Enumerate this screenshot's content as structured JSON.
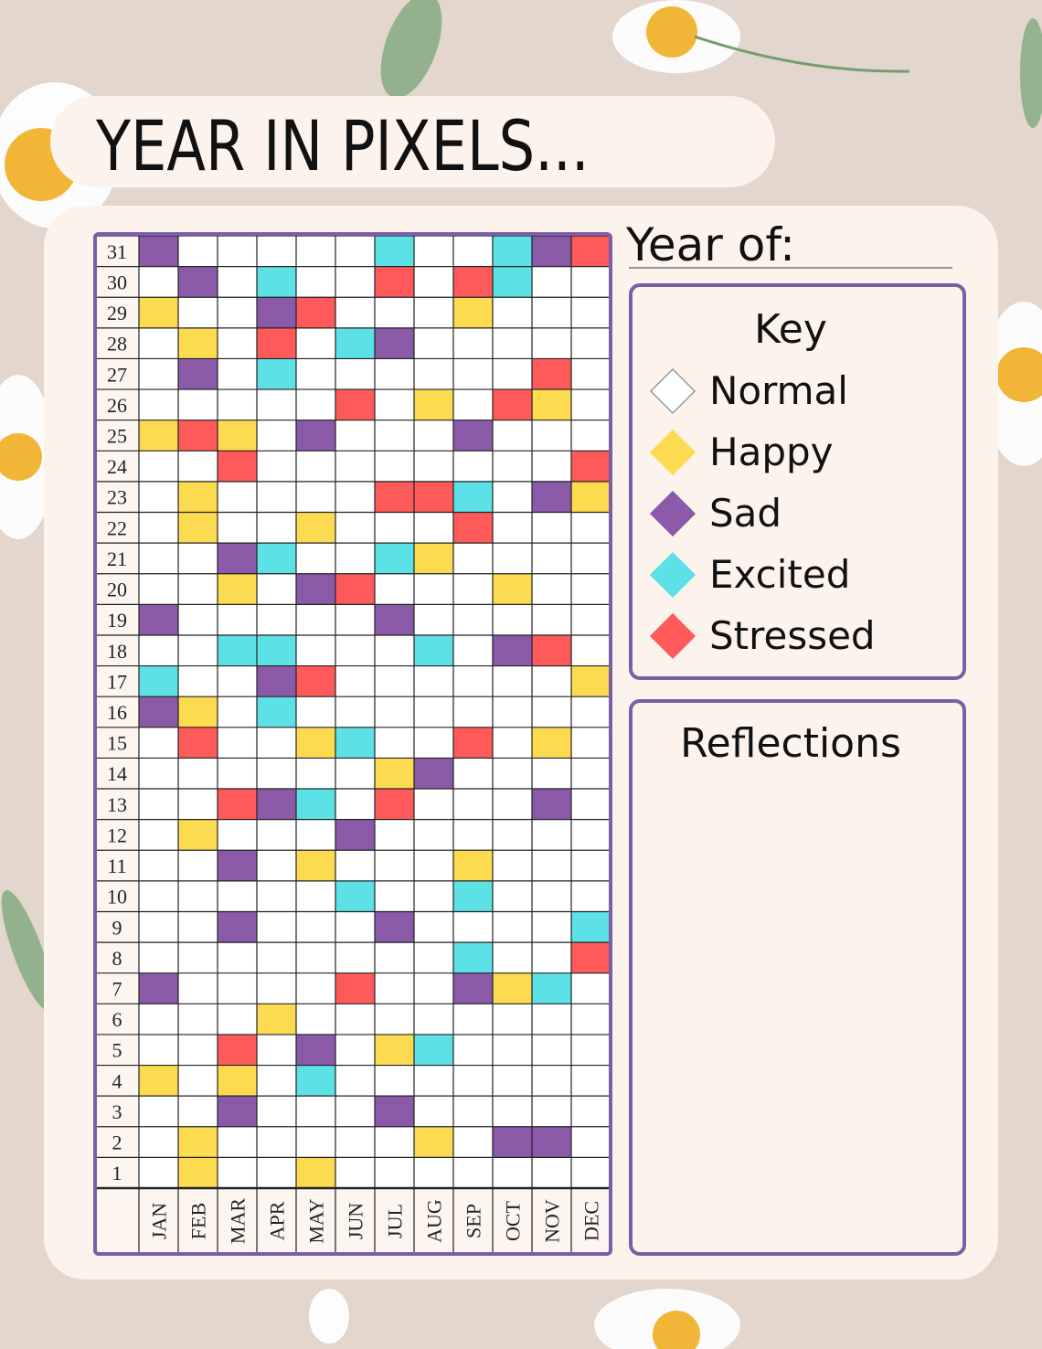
{
  "header": {
    "title": "YEAR IN PIXELS...",
    "year_label": "Year of:"
  },
  "key": {
    "title": "Key",
    "items": [
      {
        "label": "Normal",
        "color": "#ffffff"
      },
      {
        "label": "Happy",
        "color": "#fddb50"
      },
      {
        "label": "Sad",
        "color": "#8a5aa8"
      },
      {
        "label": "Excited",
        "color": "#5ce1e6"
      },
      {
        "label": "Stressed",
        "color": "#ff5a5a"
      }
    ]
  },
  "reflections": {
    "title": "Reflections"
  },
  "tracker": {
    "months": [
      "JAN",
      "FEB",
      "MAR",
      "APR",
      "MAY",
      "JUN",
      "JUL",
      "AUG",
      "SEP",
      "OCT",
      "NOV",
      "DEC"
    ],
    "rows": [
      {
        "day": 31,
        "cells": [
          "Sad",
          null,
          null,
          null,
          null,
          null,
          "Excited",
          null,
          null,
          "Excited",
          "Sad",
          "Stressed"
        ]
      },
      {
        "day": 30,
        "cells": [
          null,
          "Sad",
          null,
          "Excited",
          null,
          null,
          "Stressed",
          null,
          "Stressed",
          "Excited",
          null,
          null
        ]
      },
      {
        "day": 29,
        "cells": [
          "Happy",
          null,
          null,
          "Sad",
          "Stressed",
          null,
          null,
          null,
          "Happy",
          null,
          null,
          null
        ]
      },
      {
        "day": 28,
        "cells": [
          null,
          "Happy",
          null,
          "Stressed",
          null,
          "Excited",
          "Sad",
          null,
          null,
          null,
          null,
          null
        ]
      },
      {
        "day": 27,
        "cells": [
          null,
          "Sad",
          null,
          "Excited",
          null,
          null,
          null,
          null,
          null,
          null,
          "Stressed",
          null
        ]
      },
      {
        "day": 26,
        "cells": [
          null,
          null,
          null,
          null,
          null,
          "Stressed",
          null,
          "Happy",
          null,
          "Stressed",
          "Happy",
          null
        ]
      },
      {
        "day": 25,
        "cells": [
          "Happy",
          "Stressed",
          "Happy",
          null,
          "Sad",
          null,
          null,
          null,
          "Sad",
          null,
          null,
          null
        ]
      },
      {
        "day": 24,
        "cells": [
          null,
          null,
          "Stressed",
          null,
          null,
          null,
          null,
          null,
          null,
          null,
          null,
          "Stressed"
        ]
      },
      {
        "day": 23,
        "cells": [
          null,
          "Happy",
          null,
          null,
          null,
          null,
          "Stressed",
          "Stressed",
          "Excited",
          null,
          "Sad",
          "Happy"
        ]
      },
      {
        "day": 22,
        "cells": [
          null,
          "Happy",
          null,
          null,
          "Happy",
          null,
          null,
          null,
          "Stressed",
          null,
          null,
          null
        ]
      },
      {
        "day": 21,
        "cells": [
          null,
          null,
          "Sad",
          "Excited",
          null,
          null,
          "Excited",
          "Happy",
          null,
          null,
          null,
          null
        ]
      },
      {
        "day": 20,
        "cells": [
          null,
          null,
          "Happy",
          null,
          "Sad",
          "Stressed",
          null,
          null,
          null,
          "Happy",
          null,
          null
        ]
      },
      {
        "day": 19,
        "cells": [
          "Sad",
          null,
          null,
          null,
          null,
          null,
          "Sad",
          null,
          null,
          null,
          null,
          null
        ]
      },
      {
        "day": 18,
        "cells": [
          null,
          null,
          "Excited",
          "Excited",
          null,
          null,
          null,
          "Excited",
          null,
          "Sad",
          "Stressed",
          null
        ]
      },
      {
        "day": 17,
        "cells": [
          "Excited",
          null,
          null,
          "Sad",
          "Stressed",
          null,
          null,
          null,
          null,
          null,
          null,
          "Happy"
        ]
      },
      {
        "day": 16,
        "cells": [
          "Sad",
          "Happy",
          null,
          "Excited",
          null,
          null,
          null,
          null,
          null,
          null,
          null,
          null
        ]
      },
      {
        "day": 15,
        "cells": [
          null,
          "Stressed",
          null,
          null,
          "Happy",
          "Excited",
          null,
          null,
          "Stressed",
          null,
          "Happy",
          null
        ]
      },
      {
        "day": 14,
        "cells": [
          null,
          null,
          null,
          null,
          null,
          null,
          "Happy",
          "Sad",
          null,
          null,
          null,
          null
        ]
      },
      {
        "day": 13,
        "cells": [
          null,
          null,
          "Stressed",
          "Sad",
          "Excited",
          null,
          "Stressed",
          null,
          null,
          null,
          "Sad",
          null
        ]
      },
      {
        "day": 12,
        "cells": [
          null,
          "Happy",
          null,
          null,
          null,
          "Sad",
          null,
          null,
          null,
          null,
          null,
          null
        ]
      },
      {
        "day": 11,
        "cells": [
          null,
          null,
          "Sad",
          null,
          "Happy",
          null,
          null,
          null,
          "Happy",
          null,
          null,
          null
        ]
      },
      {
        "day": 10,
        "cells": [
          null,
          null,
          null,
          null,
          null,
          "Excited",
          null,
          null,
          "Excited",
          null,
          null,
          null
        ]
      },
      {
        "day": 9,
        "cells": [
          null,
          null,
          "Sad",
          null,
          null,
          null,
          "Sad",
          null,
          null,
          null,
          null,
          "Excited"
        ]
      },
      {
        "day": 8,
        "cells": [
          null,
          null,
          null,
          null,
          null,
          null,
          null,
          null,
          "Excited",
          null,
          null,
          "Stressed"
        ]
      },
      {
        "day": 7,
        "cells": [
          "Sad",
          null,
          null,
          null,
          null,
          "Stressed",
          null,
          null,
          "Sad",
          "Happy",
          "Excited",
          null
        ]
      },
      {
        "day": 6,
        "cells": [
          null,
          null,
          null,
          "Happy",
          null,
          null,
          null,
          null,
          null,
          null,
          null,
          null
        ]
      },
      {
        "day": 5,
        "cells": [
          null,
          null,
          "Stressed",
          null,
          "Sad",
          null,
          "Happy",
          "Excited",
          null,
          null,
          null,
          null
        ]
      },
      {
        "day": 4,
        "cells": [
          "Happy",
          null,
          "Happy",
          null,
          "Excited",
          null,
          null,
          null,
          null,
          null,
          null,
          null
        ]
      },
      {
        "day": 3,
        "cells": [
          null,
          null,
          "Sad",
          null,
          null,
          null,
          "Sad",
          null,
          null,
          null,
          null,
          null
        ]
      },
      {
        "day": 2,
        "cells": [
          null,
          "Happy",
          null,
          null,
          null,
          null,
          null,
          "Happy",
          null,
          "Sad",
          "Sad",
          null
        ]
      },
      {
        "day": 1,
        "cells": [
          null,
          "Happy",
          null,
          null,
          "Happy",
          null,
          null,
          null,
          null,
          null,
          null,
          null
        ]
      }
    ]
  }
}
